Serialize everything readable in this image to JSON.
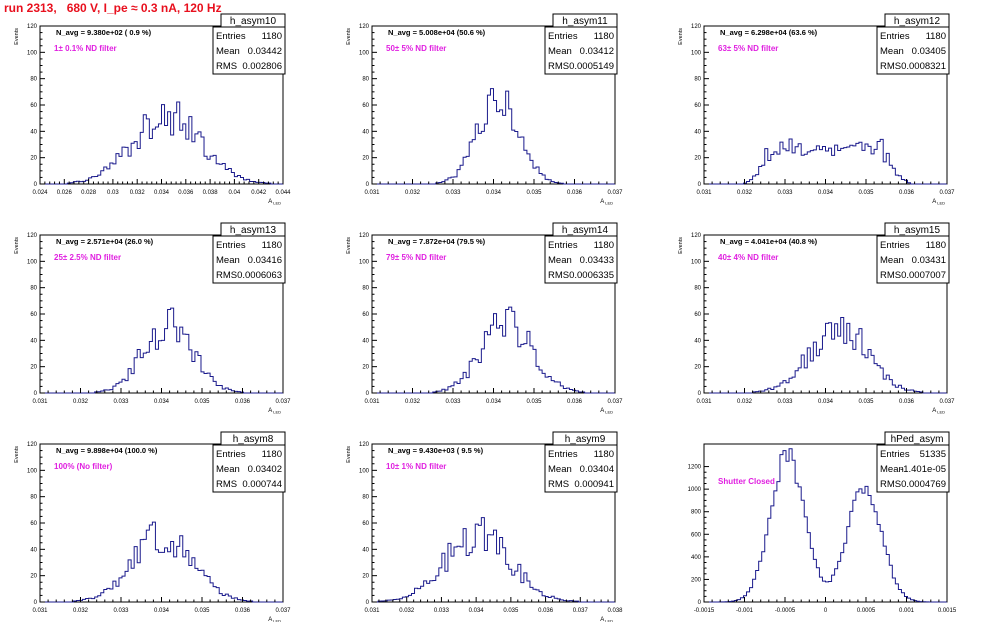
{
  "run_title": "run 2313,   680 V, I_pe ≈ 0.3 nA, 120 Hz",
  "colors": {
    "histogram": "#1a1a8c",
    "note": "#e020e0",
    "title": "#e8101e",
    "axis": "#000000"
  },
  "chart_data": [
    {
      "type": "bar",
      "name": "h_asym10",
      "ylabel": "Events",
      "xlabel": "A_LED",
      "navg": "N_avg = 9.380e+02 ( 0.9 %)",
      "note": "1± 0.1% ND filter",
      "stats": [
        {
          "label": "Entries",
          "value": "1180"
        },
        {
          "label": "Mean",
          "value": "0.03442"
        },
        {
          "label": "RMS",
          "value": "0.002806"
        }
      ],
      "xlim": [
        0.024,
        0.044
      ],
      "ylim": [
        0,
        120
      ],
      "xticks": [
        "0.024",
        "0.026",
        "0.028",
        "0.03",
        "0.032",
        "0.034",
        "0.036",
        "0.038",
        "0.04",
        "0.042",
        "0.044"
      ],
      "yticks": [
        "0",
        "20",
        "40",
        "60",
        "80",
        "100",
        "120"
      ],
      "shape": {
        "mean": 0.03442,
        "rms": 0.002806,
        "peak": 52,
        "seed": 10
      }
    },
    {
      "type": "bar",
      "name": "h_asym11",
      "ylabel": "Events",
      "xlabel": "A_LED",
      "navg": "N_avg = 5.008e+04 (50.6 %)",
      "note": "50± 5% ND filter",
      "stats": [
        {
          "label": "Entries",
          "value": "1180"
        },
        {
          "label": "Mean",
          "value": "0.03412"
        },
        {
          "label": "RMS",
          "value": "0.0005149"
        }
      ],
      "xlim": [
        0.031,
        0.037
      ],
      "ylim": [
        0,
        120
      ],
      "xticks": [
        "0.031",
        "0.032",
        "0.033",
        "0.034",
        "0.035",
        "0.036",
        "0.037"
      ],
      "yticks": [
        "0",
        "20",
        "40",
        "60",
        "80",
        "100",
        "120"
      ],
      "shape": {
        "mean": 0.03412,
        "rms": 0.0005149,
        "peak": 60,
        "seed": 11
      }
    },
    {
      "type": "bar",
      "name": "h_asym12",
      "ylabel": "Events",
      "xlabel": "A_LED",
      "navg": "N_avg = 6.298e+04 (63.6 %)",
      "note": "63± 5% ND filter",
      "stats": [
        {
          "label": "Entries",
          "value": "1180"
        },
        {
          "label": "Mean",
          "value": "0.03405"
        },
        {
          "label": "RMS",
          "value": "0.0008321"
        }
      ],
      "xlim": [
        0.031,
        0.037
      ],
      "ylim": [
        0,
        120
      ],
      "xticks": [
        "0.031",
        "0.032",
        "0.033",
        "0.034",
        "0.035",
        "0.036",
        "0.037"
      ],
      "yticks": [
        "0",
        "20",
        "40",
        "60",
        "80",
        "100",
        "120"
      ],
      "shape": {
        "mean": 0.03405,
        "rms": 0.0008321,
        "peak": 30,
        "seed": 12,
        "flat": true
      }
    },
    {
      "type": "bar",
      "name": "h_asym13",
      "ylabel": "Events",
      "xlabel": "A_LED",
      "navg": "N_avg = 2.571e+04 (26.0 %)",
      "note": "25± 2.5% ND filter",
      "stats": [
        {
          "label": "Entries",
          "value": "1180"
        },
        {
          "label": "Mean",
          "value": "0.03416"
        },
        {
          "label": "RMS",
          "value": "0.0006063"
        }
      ],
      "xlim": [
        0.031,
        0.037
      ],
      "ylim": [
        0,
        120
      ],
      "xticks": [
        "0.031",
        "0.032",
        "0.033",
        "0.034",
        "0.035",
        "0.036",
        "0.037"
      ],
      "yticks": [
        "0",
        "20",
        "40",
        "60",
        "80",
        "100",
        "120"
      ],
      "shape": {
        "mean": 0.03416,
        "rms": 0.0006063,
        "peak": 52,
        "seed": 13
      }
    },
    {
      "type": "bar",
      "name": "h_asym14",
      "ylabel": "Events",
      "xlabel": "A_LED",
      "navg": "N_avg = 7.872e+04 (79.5 %)",
      "note": "79± 5% ND filter",
      "stats": [
        {
          "label": "Entries",
          "value": "1180"
        },
        {
          "label": "Mean",
          "value": "0.03433"
        },
        {
          "label": "RMS",
          "value": "0.0006335"
        }
      ],
      "xlim": [
        0.031,
        0.037
      ],
      "ylim": [
        0,
        120
      ],
      "xticks": [
        "0.031",
        "0.032",
        "0.033",
        "0.034",
        "0.035",
        "0.036",
        "0.037"
      ],
      "yticks": [
        "0",
        "20",
        "40",
        "60",
        "80",
        "100",
        "120"
      ],
      "shape": {
        "mean": 0.03433,
        "rms": 0.0006335,
        "peak": 52,
        "seed": 14
      }
    },
    {
      "type": "bar",
      "name": "h_asym15",
      "ylabel": "Events",
      "xlabel": "A_LED",
      "navg": "N_avg = 4.041e+04 (40.8 %)",
      "note": "40± 4% ND filter",
      "stats": [
        {
          "label": "Entries",
          "value": "1180"
        },
        {
          "label": "Mean",
          "value": "0.03431"
        },
        {
          "label": "RMS",
          "value": "0.0007007"
        }
      ],
      "xlim": [
        0.031,
        0.037
      ],
      "ylim": [
        0,
        120
      ],
      "xticks": [
        "0.031",
        "0.032",
        "0.033",
        "0.034",
        "0.035",
        "0.036",
        "0.037"
      ],
      "yticks": [
        "0",
        "20",
        "40",
        "60",
        "80",
        "100",
        "120"
      ],
      "shape": {
        "mean": 0.03431,
        "rms": 0.0007007,
        "peak": 52,
        "seed": 15
      }
    },
    {
      "type": "bar",
      "name": "h_asym8",
      "ylabel": "Events",
      "xlabel": "A_LED",
      "navg": "N_avg = 9.898e+04 (100.0 %)",
      "note": "100% (No filter)",
      "stats": [
        {
          "label": "Entries",
          "value": "1180"
        },
        {
          "label": "Mean",
          "value": "0.03402"
        },
        {
          "label": "RMS",
          "value": "0.000744"
        }
      ],
      "xlim": [
        0.031,
        0.037
      ],
      "ylim": [
        0,
        120
      ],
      "xticks": [
        "0.031",
        "0.032",
        "0.033",
        "0.034",
        "0.035",
        "0.036",
        "0.037"
      ],
      "yticks": [
        "0",
        "20",
        "40",
        "60",
        "80",
        "100",
        "120"
      ],
      "shape": {
        "mean": 0.03402,
        "rms": 0.000744,
        "peak": 50,
        "seed": 8
      }
    },
    {
      "type": "bar",
      "name": "h_asym9",
      "ylabel": "Events",
      "xlabel": "A_LED",
      "navg": "N_avg = 9.430e+03 ( 9.5 %)",
      "note": "10± 1% ND filter",
      "stats": [
        {
          "label": "Entries",
          "value": "1180"
        },
        {
          "label": "Mean",
          "value": "0.03404"
        },
        {
          "label": "RMS",
          "value": "0.000941"
        }
      ],
      "xlim": [
        0.031,
        0.038
      ],
      "ylim": [
        0,
        120
      ],
      "xticks": [
        "0.031",
        "0.032",
        "0.033",
        "0.034",
        "0.035",
        "0.036",
        "0.037",
        "0.038"
      ],
      "yticks": [
        "0",
        "20",
        "40",
        "60",
        "80",
        "100",
        "120"
      ],
      "shape": {
        "mean": 0.03404,
        "rms": 0.000941,
        "peak": 50,
        "seed": 9
      }
    },
    {
      "type": "bar",
      "name": "hPed_asym",
      "ylabel": "",
      "xlabel": "",
      "navg": "",
      "note": "Shutter Closed",
      "stats": [
        {
          "label": "Entries",
          "value": "51335"
        },
        {
          "label": "Mean",
          "value": "-1.401e-05"
        },
        {
          "label": "RMS",
          "value": "0.0004769"
        }
      ],
      "xlim": [
        -0.0015,
        0.0015
      ],
      "ylim": [
        0,
        1400
      ],
      "xticks": [
        "-0.0015",
        "-0.001",
        "-0.0005",
        "0",
        "0.0005",
        "0.001",
        "0.0015"
      ],
      "yticks": [
        "0",
        "200",
        "400",
        "600",
        "800",
        "1000",
        "1200"
      ],
      "shape": {
        "bimodal": true,
        "m1": -0.00047,
        "m2": 0.00048,
        "s": 0.00021,
        "peak1": 1300,
        "peak2": 1020,
        "seed": 99
      }
    }
  ]
}
